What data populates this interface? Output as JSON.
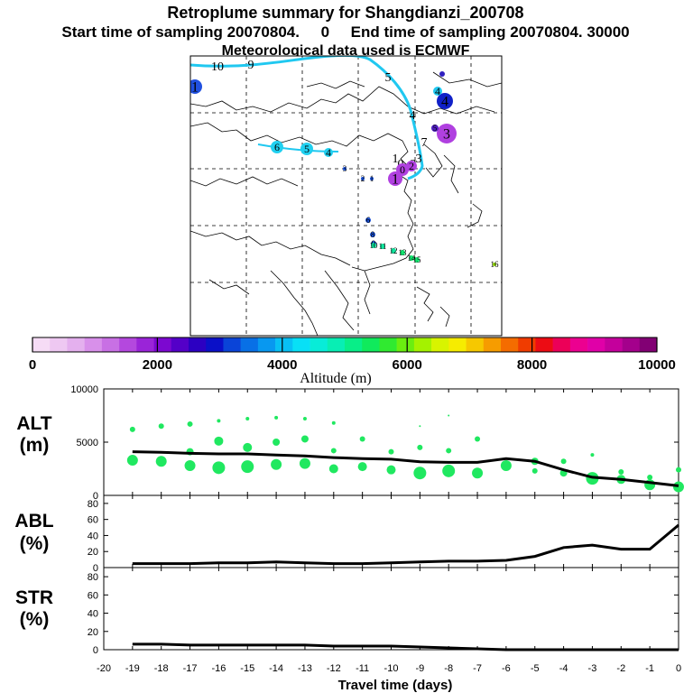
{
  "title": "Retroplume summary for Shangdianzi_200708",
  "subtitle": "Start time of sampling 20070804.     0     End time of sampling 20070804. 30000",
  "met_line": "Meteorological data used is ECMWF",
  "colorbar": {
    "label": "Altitude  (m)",
    "ticks": [
      "0",
      "2000",
      "4000",
      "6000",
      "8000",
      "10000"
    ],
    "colors": [
      "#f6dcf6",
      "#eec8f2",
      "#e4b0ee",
      "#d890ea",
      "#c870e4",
      "#b448de",
      "#9a24d8",
      "#7c08d0",
      "#5400c8",
      "#2c00c2",
      "#0a10c8",
      "#0a44d8",
      "#0870e6",
      "#0898f0",
      "#08c0f4",
      "#08e0f6",
      "#08ecd8",
      "#08eeb4",
      "#08ee88",
      "#10ea5c",
      "#30ea30",
      "#6aee10",
      "#a4f200",
      "#d8f400",
      "#f6ec00",
      "#f6c800",
      "#f69c00",
      "#f46c00",
      "#f03c00",
      "#ec0c14",
      "#ec0058",
      "#ec0090",
      "#e000a8",
      "#c4009c",
      "#a4008c",
      "#820074"
    ]
  },
  "map": {
    "track_labels": [
      "10",
      "9",
      "5",
      "4",
      "7",
      "1",
      "2",
      "3",
      "1",
      "0"
    ],
    "markers": [
      {
        "label": "1",
        "color": "#2050e0",
        "r": 8
      },
      {
        "label": "4",
        "color": "#1020c8",
        "r": 9
      },
      {
        "label": "3",
        "color": "#b040e0",
        "r": 11
      },
      {
        "label": "4",
        "color": "#20c8f0",
        "r": 5
      },
      {
        "label": "5",
        "color": "#5020c0",
        "r": 4
      },
      {
        "label": "6",
        "color": "#20d0f0",
        "r": 7
      },
      {
        "label": "5",
        "color": "#20d0f0",
        "r": 7
      },
      {
        "label": "4",
        "color": "#20d0f0",
        "r": 5
      },
      {
        "label": "1",
        "color": "#b040e0",
        "r": 8
      },
      {
        "label": "0",
        "color": "#b040e0",
        "r": 7
      },
      {
        "label": "2",
        "color": "#b040e0",
        "r": 6
      },
      {
        "label": "3",
        "color": "#1850d8",
        "r": 2
      },
      {
        "label": "2",
        "color": "#1850d8",
        "r": 2
      },
      {
        "label": "1",
        "color": "#1850d8",
        "r": 2
      },
      {
        "label": "6",
        "color": "#1850d8",
        "r": 3
      },
      {
        "label": "8",
        "color": "#1850d8",
        "r": 3
      },
      {
        "label": "9",
        "color": "#1850d8",
        "r": 3
      },
      {
        "label": "10",
        "color": "#10e8a0",
        "r": 3
      },
      {
        "label": "11",
        "color": "#10e8a0",
        "r": 3
      },
      {
        "label": "12",
        "color": "#10e8a0",
        "r": 3
      },
      {
        "label": "13",
        "color": "#10e870",
        "r": 3
      },
      {
        "label": "14",
        "color": "#10e870",
        "r": 3
      },
      {
        "label": "15",
        "color": "#10e870",
        "r": 3
      },
      {
        "label": "16",
        "color": "#a0f000",
        "r": 2
      }
    ]
  },
  "chart_data": [
    {
      "type": "line",
      "panel": "ALT",
      "ylabel": "ALT\n(m)",
      "ylabel_line1": "ALT",
      "ylabel_line2": "(m)",
      "ylim": [
        0,
        10000
      ],
      "yticks": [
        0,
        5000,
        10000
      ],
      "ytick_labels": [
        "0",
        "5000",
        "10000"
      ],
      "x": [
        -19,
        -18,
        -17,
        -16,
        -15,
        -14,
        -13,
        -12,
        -11,
        -10,
        -9,
        -8,
        -7,
        -6,
        -5,
        -4,
        -3,
        -2,
        -1,
        0
      ],
      "values": [
        4100,
        4050,
        3950,
        3900,
        3900,
        3800,
        3700,
        3550,
        3450,
        3400,
        3150,
        3100,
        3100,
        3450,
        3200,
        2400,
        1700,
        1500,
        1200,
        900
      ],
      "point_clusters": [
        [
          [
            -19,
            6200,
            3
          ],
          [
            -19,
            3300,
            6
          ],
          [
            -18,
            6500,
            3
          ],
          [
            -18,
            3200,
            6
          ],
          [
            -17,
            6700,
            3
          ],
          [
            -17,
            4100,
            4
          ],
          [
            -17,
            2800,
            6
          ]
        ],
        [
          [
            -16,
            7000,
            2
          ],
          [
            -16,
            5100,
            5
          ],
          [
            -16,
            2600,
            7
          ],
          [
            -15,
            7200,
            2
          ],
          [
            -15,
            4500,
            5
          ],
          [
            -15,
            2700,
            7
          ]
        ],
        [
          [
            -14,
            7300,
            2
          ],
          [
            -14,
            5000,
            4
          ],
          [
            -14,
            2900,
            6
          ],
          [
            -13,
            7200,
            2
          ],
          [
            -13,
            5300,
            4
          ],
          [
            -13,
            3000,
            6
          ]
        ],
        [
          [
            -12,
            6800,
            2
          ],
          [
            -12,
            4200,
            3
          ],
          [
            -12,
            2500,
            5
          ],
          [
            -11,
            5300,
            3
          ],
          [
            -11,
            2700,
            5
          ],
          [
            -10,
            4100,
            3
          ],
          [
            -10,
            2400,
            5
          ]
        ],
        [
          [
            -9,
            6500,
            1
          ],
          [
            -9,
            4500,
            3
          ],
          [
            -9,
            2100,
            7
          ],
          [
            -8,
            7500,
            1
          ],
          [
            -8,
            4200,
            3
          ],
          [
            -8,
            2300,
            7
          ],
          [
            -7,
            5300,
            3
          ],
          [
            -7,
            2100,
            6
          ]
        ],
        [
          [
            -6,
            2800,
            6
          ],
          [
            -5,
            3200,
            4
          ],
          [
            -5,
            2300,
            3
          ],
          [
            -4,
            3200,
            3
          ],
          [
            -4,
            2100,
            4
          ],
          [
            -3,
            3800,
            2
          ],
          [
            -3,
            1600,
            7
          ],
          [
            -2,
            2200,
            3
          ],
          [
            -2,
            1500,
            5
          ],
          [
            -1,
            1700,
            3
          ],
          [
            -1,
            1000,
            6
          ],
          [
            0,
            2400,
            3
          ],
          [
            0,
            800,
            6
          ]
        ]
      ]
    },
    {
      "type": "line",
      "panel": "ABL",
      "ylabel_line1": "ABL",
      "ylabel_line2": "(%)",
      "ylim": [
        0,
        90
      ],
      "yticks": [
        0,
        20,
        40,
        60,
        80
      ],
      "ytick_labels": [
        "0",
        "20",
        "40",
        "60",
        "80"
      ],
      "x": [
        -19,
        -18,
        -17,
        -16,
        -15,
        -14,
        -13,
        -12,
        -11,
        -10,
        -9,
        -8,
        -7,
        -6,
        -5,
        -4,
        -3,
        -2,
        -1,
        0
      ],
      "values": [
        5,
        5,
        5,
        6,
        6,
        7,
        6,
        5,
        5,
        6,
        7,
        8,
        8,
        9,
        14,
        25,
        28,
        23,
        23,
        53
      ]
    },
    {
      "type": "line",
      "panel": "STR",
      "ylabel_line1": "STR",
      "ylabel_line2": "(%)",
      "ylim": [
        0,
        90
      ],
      "yticks": [
        0,
        20,
        40,
        60,
        80
      ],
      "ytick_labels": [
        "0",
        "20",
        "40",
        "60",
        "80"
      ],
      "x": [
        -19,
        -18,
        -17,
        -16,
        -15,
        -14,
        -13,
        -12,
        -11,
        -10,
        -9,
        -8,
        -7,
        -6,
        -5,
        -4,
        -3,
        -2,
        -1,
        0
      ],
      "values": [
        6,
        6,
        5,
        5,
        5,
        5,
        5,
        4,
        4,
        4,
        3,
        2,
        1,
        0,
        0,
        0,
        0,
        0,
        0,
        0
      ]
    }
  ],
  "x_axis": {
    "xlim": [
      -20,
      0
    ],
    "ticks": [
      -20,
      -19,
      -18,
      -17,
      -16,
      -15,
      -14,
      -13,
      -12,
      -11,
      -10,
      -9,
      -8,
      -7,
      -6,
      -5,
      -4,
      -3,
      -2,
      -1,
      0
    ],
    "tick_labels": [
      "-20",
      "-19",
      "-18",
      "-17",
      "-16",
      "-15",
      "-14",
      "-13",
      "-12",
      "-11",
      "-10",
      "-9",
      "-8",
      "-7",
      "-6",
      "-5",
      "-4",
      "-3",
      "-2",
      "-1",
      "0"
    ],
    "label": "Travel time (days)"
  }
}
